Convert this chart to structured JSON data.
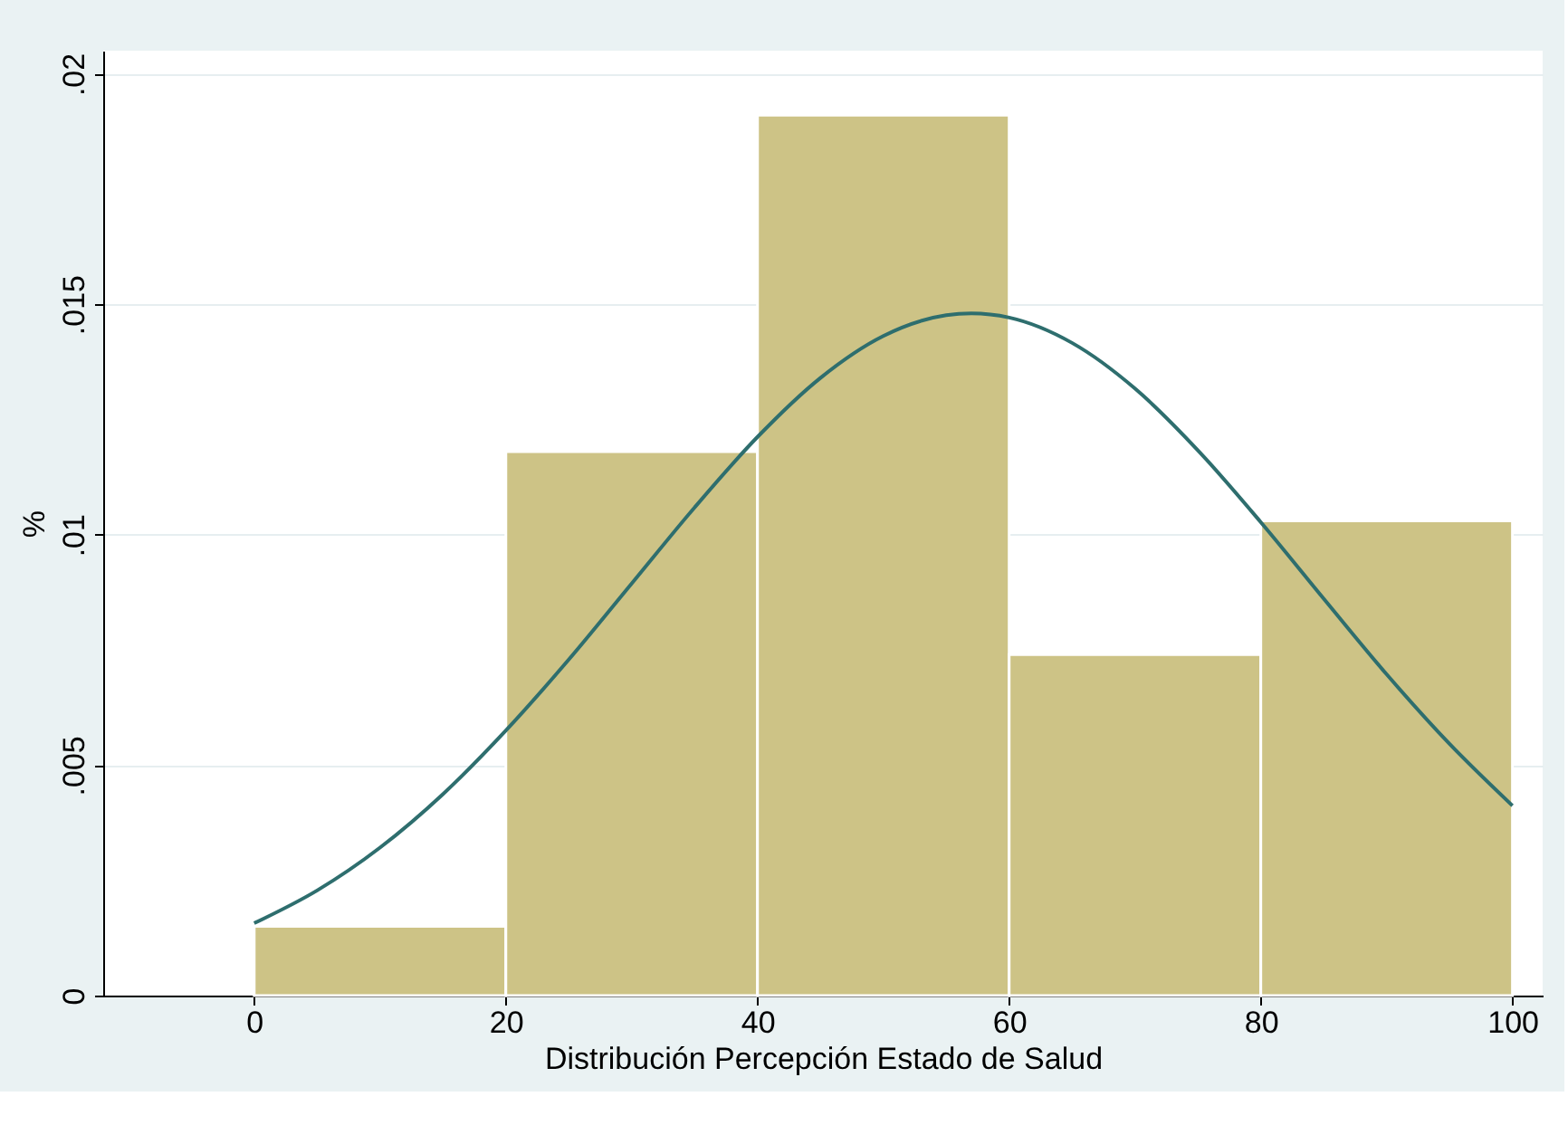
{
  "chart_data": {
    "type": "histogram",
    "xlabel": "Distribución Percepción Estado de Salud",
    "ylabel": "%",
    "bins": [
      0,
      20,
      40,
      60,
      80,
      100
    ],
    "values": [
      0.0015,
      0.0118,
      0.0191,
      0.0074,
      0.0103
    ],
    "color": "#cdc386",
    "series": [
      {
        "type": "line",
        "color": "#2e6e6e",
        "x": [
          0,
          5,
          10,
          15,
          20,
          25,
          30,
          35,
          40,
          45,
          50,
          55,
          57,
          60,
          65,
          70,
          75,
          80,
          85,
          90,
          95,
          100
        ],
        "values": [
          0.00157,
          0.00228,
          0.00321,
          0.00437,
          0.00575,
          0.00729,
          0.00894,
          0.01059,
          0.01212,
          0.0134,
          0.01431,
          0.01476,
          0.0148,
          0.01471,
          0.01416,
          0.01317,
          0.01183,
          0.01027,
          0.00861,
          0.00697,
          0.00546,
          0.00412
        ]
      }
    ],
    "xlim": [
      -12,
      102.4
    ],
    "xticks": [
      0,
      20,
      40,
      60,
      80,
      100
    ],
    "ylim": [
      0,
      0.0205
    ],
    "yticks": [
      {
        "value": 0,
        "label": "0"
      },
      {
        "value": 0.005,
        "label": ".005"
      },
      {
        "value": 0.01,
        "label": ".01"
      },
      {
        "value": 0.015,
        "label": ".015"
      },
      {
        "value": 0.02,
        "label": ".02"
      }
    ],
    "grid": "y"
  }
}
